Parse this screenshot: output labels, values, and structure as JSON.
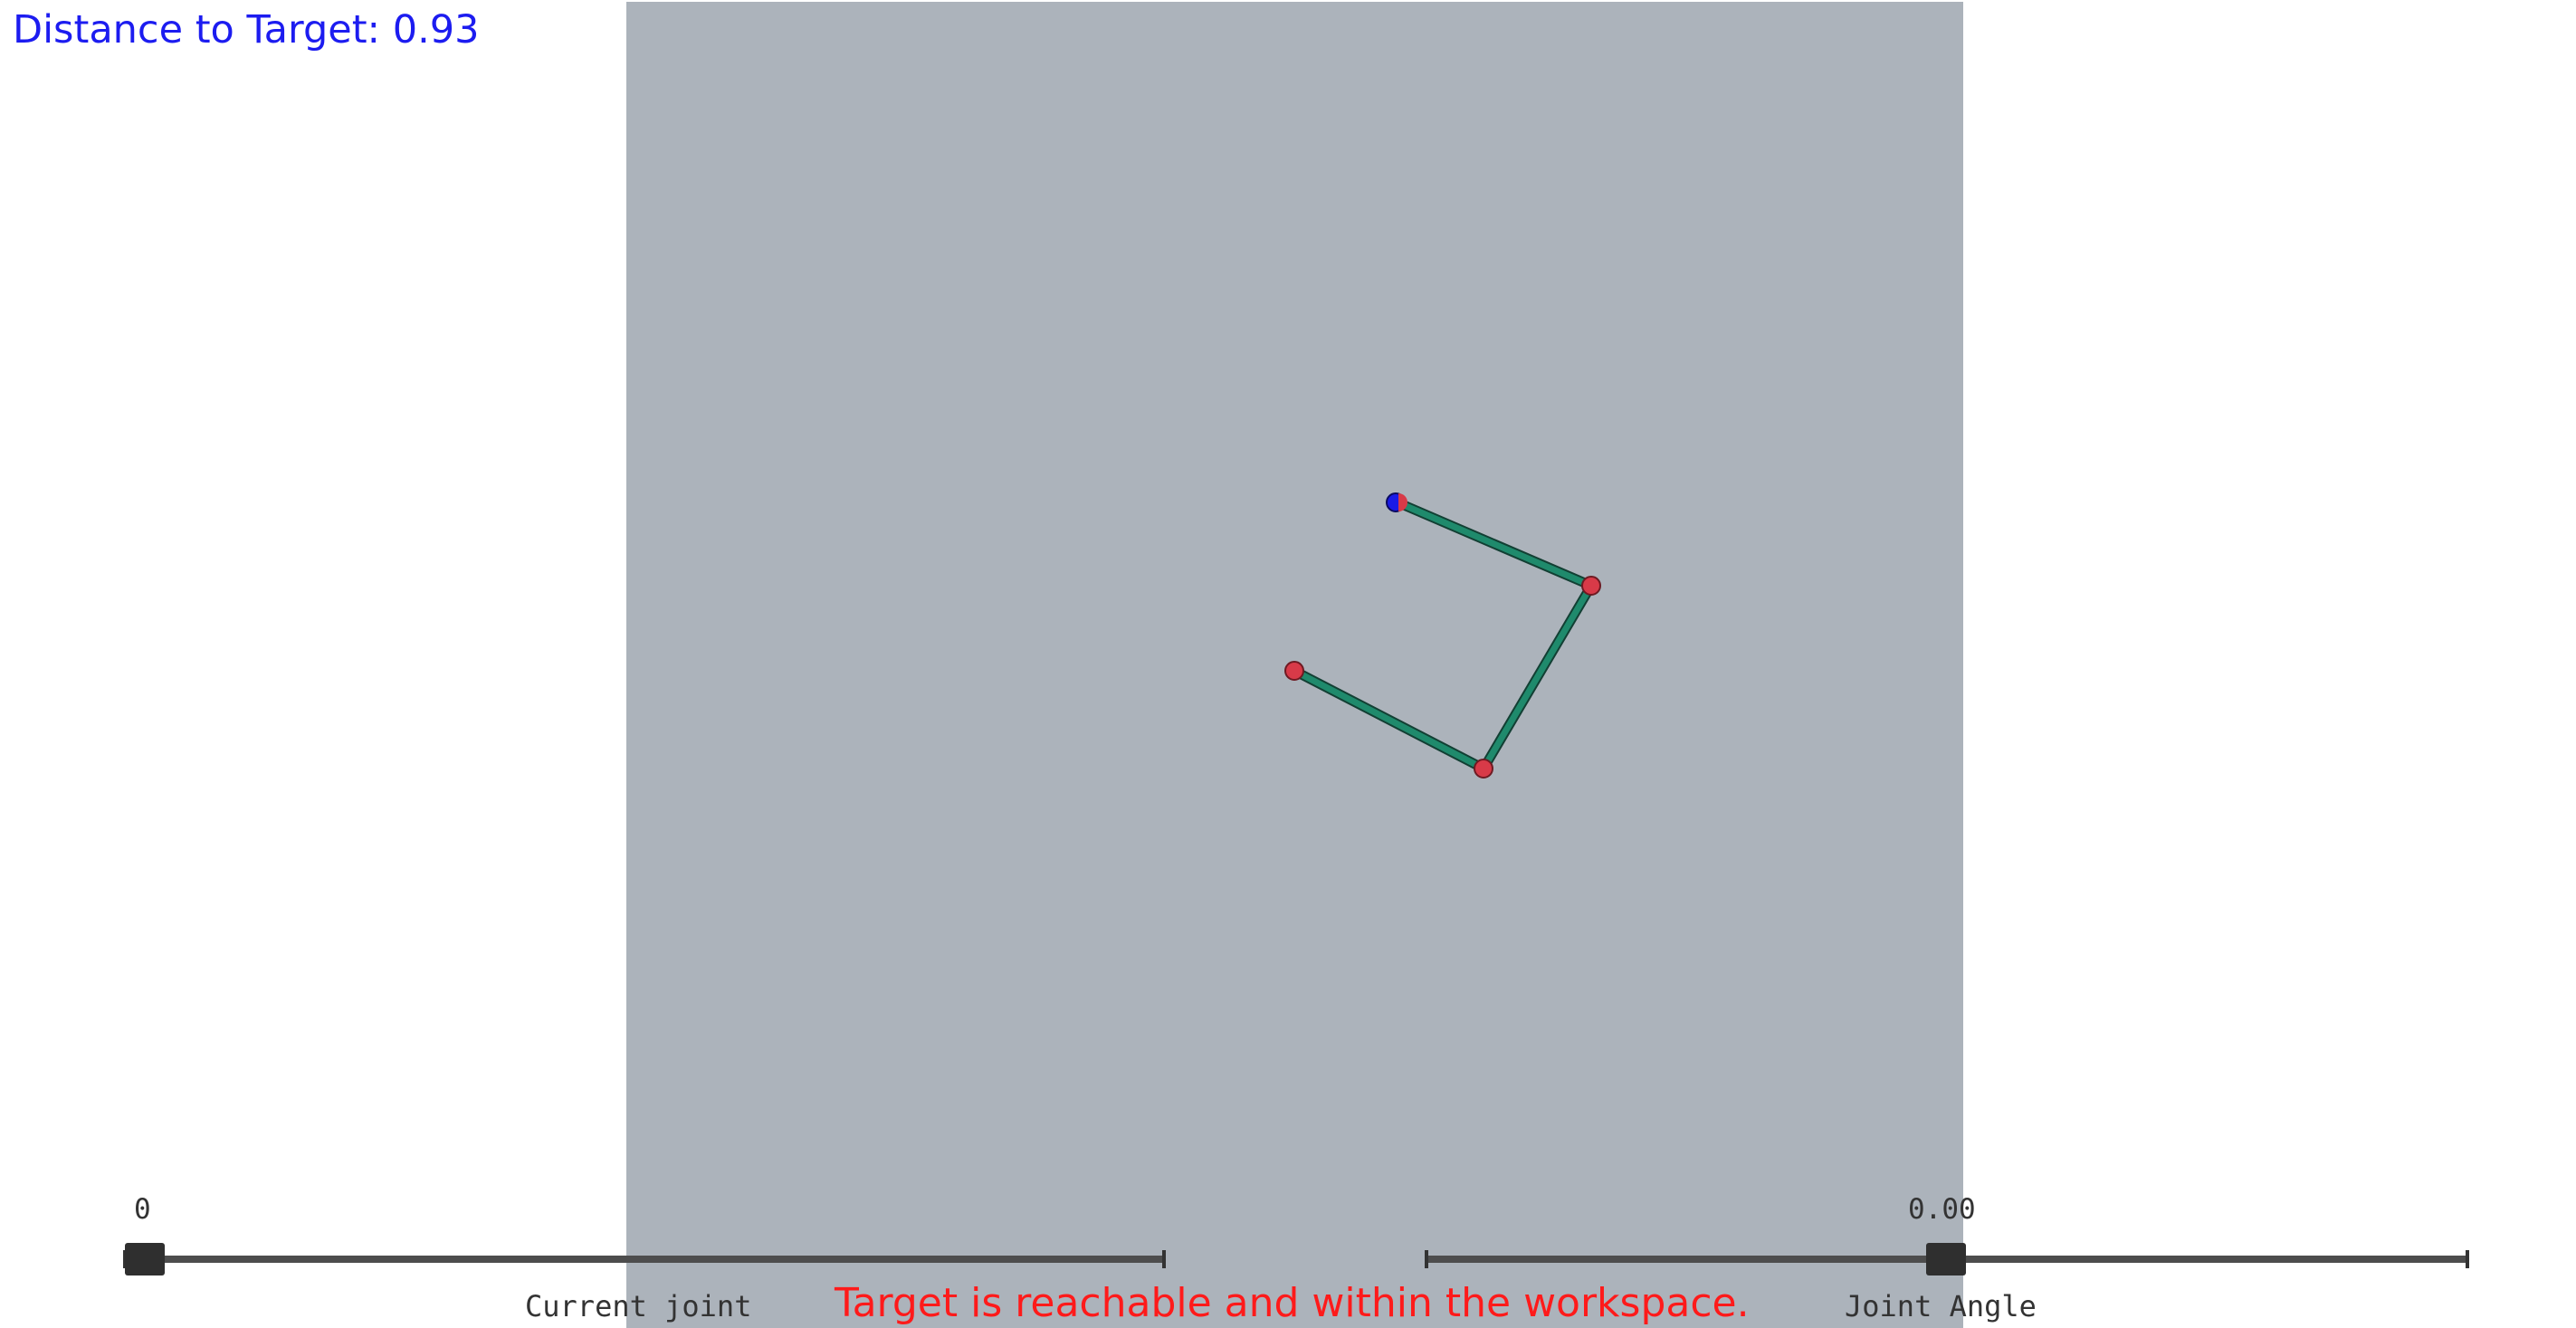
{
  "readout": {
    "distance_to_target": "Distance to Target: 0.93"
  },
  "status": {
    "message": "Target is reachable and within the workspace."
  },
  "sliders": {
    "current_joint": {
      "label": "Current joint",
      "value_text": "0",
      "value": 0
    },
    "joint_angle": {
      "label": "Joint Angle",
      "value_text": "0.00",
      "value": 0.0
    }
  },
  "colors": {
    "workspace_background": "#acb3bb",
    "link": "#1f8a6c",
    "joint": "#d83a48",
    "target": "#1a1ae6",
    "readout_text": "#1c1cf0",
    "status_text": "#ff1a1a"
  }
}
